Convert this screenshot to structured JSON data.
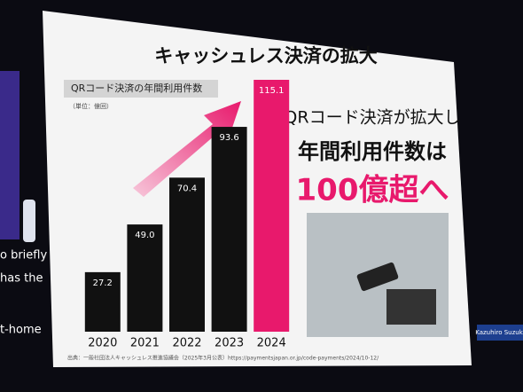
{
  "slide_title": "キャッシュレス決済の拡大",
  "chart_data": {
    "type": "bar",
    "title": "QRコード決済の年間利用件数",
    "subtitle": "（単位：億回）",
    "categories": [
      "2020",
      "2021",
      "2022",
      "2023",
      "2024"
    ],
    "values": [
      27.2,
      49.0,
      70.4,
      93.6,
      115.1
    ],
    "value_labels": [
      "27.2",
      "49.0",
      "70.4",
      "93.6",
      "115.1"
    ],
    "colors": [
      "#111111",
      "#111111",
      "#111111",
      "#111111",
      "#e8196c"
    ]
  },
  "headline": [
    "QRコード決済が拡大し",
    "年間利用件数は",
    "100億超へ"
  ],
  "source": "出典：一般社団法人キャッシュレス推進協議会（2025年3月公表）https://paymentsjapan.or.jp/code-payments/2024/10-12/",
  "side_captions": [
    "o briefly",
    "has the",
    "t-home"
  ],
  "speaker": "Kazuhiro Suzuki"
}
